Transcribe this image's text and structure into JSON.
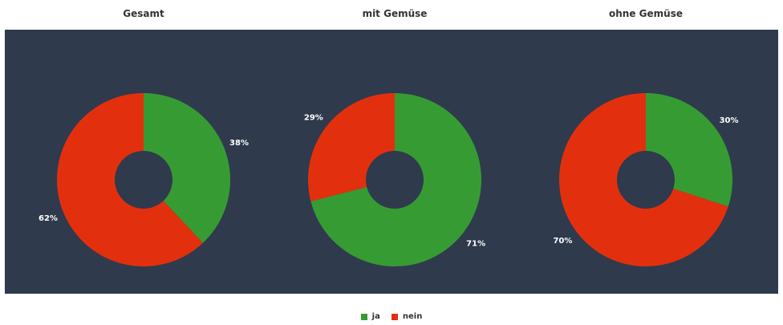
{
  "colors": {
    "ja": "#379b34",
    "nein": "#e2300e",
    "background": "#2f3a4c"
  },
  "legend": [
    {
      "label": "ja",
      "color": "#379b34"
    },
    {
      "label": "nein",
      "color": "#e2300e"
    }
  ],
  "chart_data": [
    {
      "type": "pie",
      "title": "Gesamt",
      "categories": [
        "ja",
        "nein"
      ],
      "values": [
        38,
        62
      ],
      "labels": [
        "38%",
        "62%"
      ]
    },
    {
      "type": "pie",
      "title": "mit Gemüse",
      "categories": [
        "ja",
        "nein"
      ],
      "values": [
        71,
        29
      ],
      "labels": [
        "71%",
        "29%"
      ]
    },
    {
      "type": "pie",
      "title": "ohne Gemüse",
      "categories": [
        "ja",
        "nein"
      ],
      "values": [
        30,
        70
      ],
      "labels": [
        "30%",
        "70%"
      ]
    }
  ]
}
